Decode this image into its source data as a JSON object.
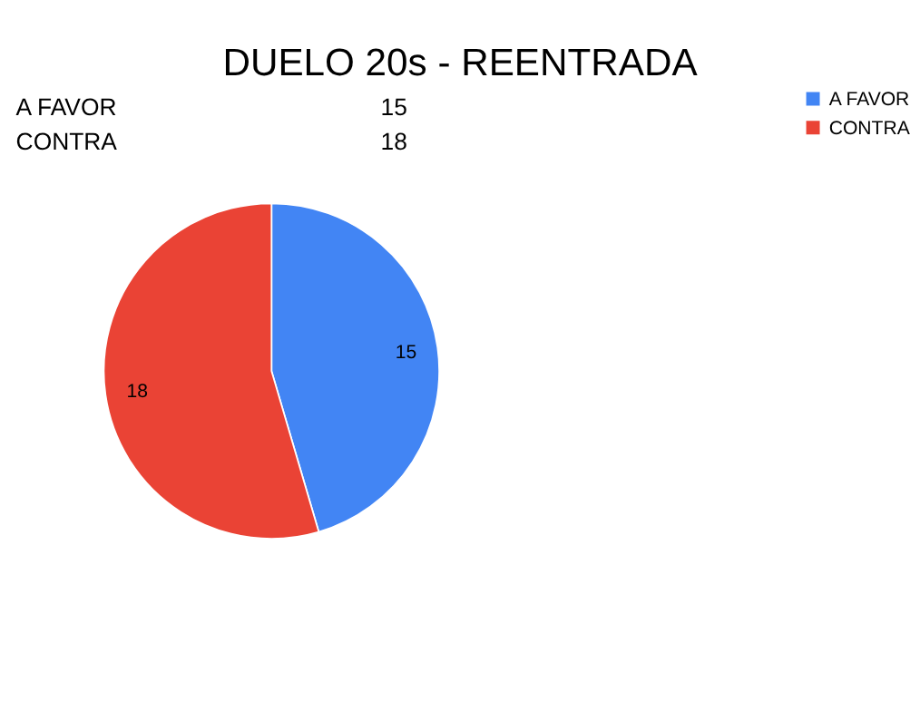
{
  "chart_data": {
    "type": "pie",
    "title": "DUELO 20s - REENTRADA",
    "categories": [
      "A FAVOR",
      "CONTRA"
    ],
    "values": [
      15,
      18
    ],
    "colors": [
      "#4285f4",
      "#ea4335"
    ],
    "value_labels": [
      "15",
      "18"
    ],
    "annotations": [
      "15",
      "18"
    ],
    "legend": "right"
  }
}
